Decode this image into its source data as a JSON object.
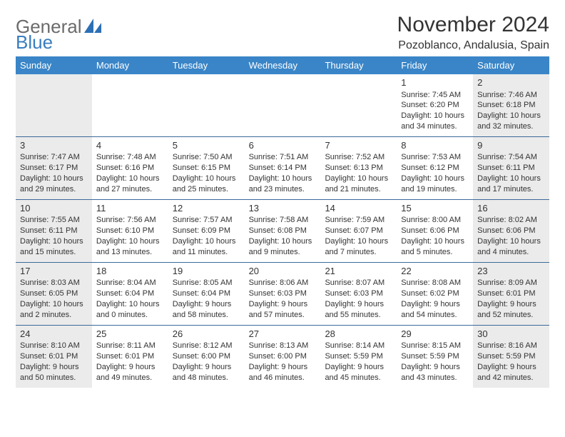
{
  "logo": {
    "text1": "General",
    "text2": "Blue"
  },
  "title": "November 2024",
  "location": "Pozoblanco, Andalusia, Spain",
  "header_bg": "#3a85c7",
  "row_border": "#3a6a9a",
  "shaded_bg": "#ebebeb",
  "text_color": "#333333",
  "weekdays": [
    "Sunday",
    "Monday",
    "Tuesday",
    "Wednesday",
    "Thursday",
    "Friday",
    "Saturday"
  ],
  "weeks": [
    [
      {
        "day": "",
        "sunrise": "",
        "sunset": "",
        "daylight": ""
      },
      {
        "day": "",
        "sunrise": "",
        "sunset": "",
        "daylight": ""
      },
      {
        "day": "",
        "sunrise": "",
        "sunset": "",
        "daylight": ""
      },
      {
        "day": "",
        "sunrise": "",
        "sunset": "",
        "daylight": ""
      },
      {
        "day": "",
        "sunrise": "",
        "sunset": "",
        "daylight": ""
      },
      {
        "day": "1",
        "sunrise": "Sunrise: 7:45 AM",
        "sunset": "Sunset: 6:20 PM",
        "daylight": "Daylight: 10 hours and 34 minutes."
      },
      {
        "day": "2",
        "sunrise": "Sunrise: 7:46 AM",
        "sunset": "Sunset: 6:18 PM",
        "daylight": "Daylight: 10 hours and 32 minutes."
      }
    ],
    [
      {
        "day": "3",
        "sunrise": "Sunrise: 7:47 AM",
        "sunset": "Sunset: 6:17 PM",
        "daylight": "Daylight: 10 hours and 29 minutes."
      },
      {
        "day": "4",
        "sunrise": "Sunrise: 7:48 AM",
        "sunset": "Sunset: 6:16 PM",
        "daylight": "Daylight: 10 hours and 27 minutes."
      },
      {
        "day": "5",
        "sunrise": "Sunrise: 7:50 AM",
        "sunset": "Sunset: 6:15 PM",
        "daylight": "Daylight: 10 hours and 25 minutes."
      },
      {
        "day": "6",
        "sunrise": "Sunrise: 7:51 AM",
        "sunset": "Sunset: 6:14 PM",
        "daylight": "Daylight: 10 hours and 23 minutes."
      },
      {
        "day": "7",
        "sunrise": "Sunrise: 7:52 AM",
        "sunset": "Sunset: 6:13 PM",
        "daylight": "Daylight: 10 hours and 21 minutes."
      },
      {
        "day": "8",
        "sunrise": "Sunrise: 7:53 AM",
        "sunset": "Sunset: 6:12 PM",
        "daylight": "Daylight: 10 hours and 19 minutes."
      },
      {
        "day": "9",
        "sunrise": "Sunrise: 7:54 AM",
        "sunset": "Sunset: 6:11 PM",
        "daylight": "Daylight: 10 hours and 17 minutes."
      }
    ],
    [
      {
        "day": "10",
        "sunrise": "Sunrise: 7:55 AM",
        "sunset": "Sunset: 6:11 PM",
        "daylight": "Daylight: 10 hours and 15 minutes."
      },
      {
        "day": "11",
        "sunrise": "Sunrise: 7:56 AM",
        "sunset": "Sunset: 6:10 PM",
        "daylight": "Daylight: 10 hours and 13 minutes."
      },
      {
        "day": "12",
        "sunrise": "Sunrise: 7:57 AM",
        "sunset": "Sunset: 6:09 PM",
        "daylight": "Daylight: 10 hours and 11 minutes."
      },
      {
        "day": "13",
        "sunrise": "Sunrise: 7:58 AM",
        "sunset": "Sunset: 6:08 PM",
        "daylight": "Daylight: 10 hours and 9 minutes."
      },
      {
        "day": "14",
        "sunrise": "Sunrise: 7:59 AM",
        "sunset": "Sunset: 6:07 PM",
        "daylight": "Daylight: 10 hours and 7 minutes."
      },
      {
        "day": "15",
        "sunrise": "Sunrise: 8:00 AM",
        "sunset": "Sunset: 6:06 PM",
        "daylight": "Daylight: 10 hours and 5 minutes."
      },
      {
        "day": "16",
        "sunrise": "Sunrise: 8:02 AM",
        "sunset": "Sunset: 6:06 PM",
        "daylight": "Daylight: 10 hours and 4 minutes."
      }
    ],
    [
      {
        "day": "17",
        "sunrise": "Sunrise: 8:03 AM",
        "sunset": "Sunset: 6:05 PM",
        "daylight": "Daylight: 10 hours and 2 minutes."
      },
      {
        "day": "18",
        "sunrise": "Sunrise: 8:04 AM",
        "sunset": "Sunset: 6:04 PM",
        "daylight": "Daylight: 10 hours and 0 minutes."
      },
      {
        "day": "19",
        "sunrise": "Sunrise: 8:05 AM",
        "sunset": "Sunset: 6:04 PM",
        "daylight": "Daylight: 9 hours and 58 minutes."
      },
      {
        "day": "20",
        "sunrise": "Sunrise: 8:06 AM",
        "sunset": "Sunset: 6:03 PM",
        "daylight": "Daylight: 9 hours and 57 minutes."
      },
      {
        "day": "21",
        "sunrise": "Sunrise: 8:07 AM",
        "sunset": "Sunset: 6:03 PM",
        "daylight": "Daylight: 9 hours and 55 minutes."
      },
      {
        "day": "22",
        "sunrise": "Sunrise: 8:08 AM",
        "sunset": "Sunset: 6:02 PM",
        "daylight": "Daylight: 9 hours and 54 minutes."
      },
      {
        "day": "23",
        "sunrise": "Sunrise: 8:09 AM",
        "sunset": "Sunset: 6:01 PM",
        "daylight": "Daylight: 9 hours and 52 minutes."
      }
    ],
    [
      {
        "day": "24",
        "sunrise": "Sunrise: 8:10 AM",
        "sunset": "Sunset: 6:01 PM",
        "daylight": "Daylight: 9 hours and 50 minutes."
      },
      {
        "day": "25",
        "sunrise": "Sunrise: 8:11 AM",
        "sunset": "Sunset: 6:01 PM",
        "daylight": "Daylight: 9 hours and 49 minutes."
      },
      {
        "day": "26",
        "sunrise": "Sunrise: 8:12 AM",
        "sunset": "Sunset: 6:00 PM",
        "daylight": "Daylight: 9 hours and 48 minutes."
      },
      {
        "day": "27",
        "sunrise": "Sunrise: 8:13 AM",
        "sunset": "Sunset: 6:00 PM",
        "daylight": "Daylight: 9 hours and 46 minutes."
      },
      {
        "day": "28",
        "sunrise": "Sunrise: 8:14 AM",
        "sunset": "Sunset: 5:59 PM",
        "daylight": "Daylight: 9 hours and 45 minutes."
      },
      {
        "day": "29",
        "sunrise": "Sunrise: 8:15 AM",
        "sunset": "Sunset: 5:59 PM",
        "daylight": "Daylight: 9 hours and 43 minutes."
      },
      {
        "day": "30",
        "sunrise": "Sunrise: 8:16 AM",
        "sunset": "Sunset: 5:59 PM",
        "daylight": "Daylight: 9 hours and 42 minutes."
      }
    ]
  ]
}
